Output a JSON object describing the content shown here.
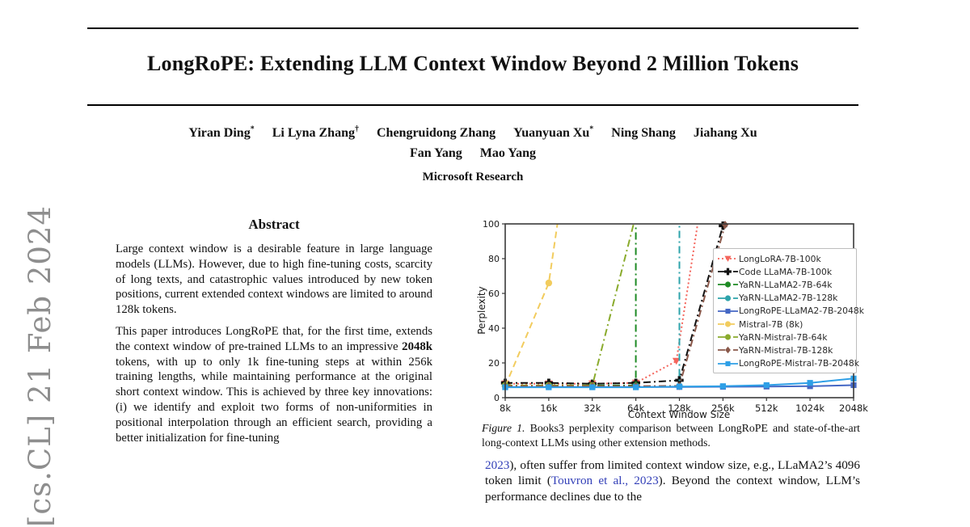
{
  "arxiv_stamp": "[cs.CL] 21 Feb 2024",
  "link_color": "#3340b8",
  "header": {
    "title": "LongRoPE: Extending LLM Context Window Beyond 2 Million Tokens",
    "authors_line1": [
      {
        "name": "Yiran Ding",
        "sup": "*"
      },
      {
        "name": "Li Lyna Zhang",
        "sup": "†"
      },
      {
        "name": "Chengruidong Zhang",
        "sup": ""
      },
      {
        "name": "Yuanyuan Xu",
        "sup": "*"
      },
      {
        "name": "Ning Shang",
        "sup": ""
      },
      {
        "name": "Jiahang Xu",
        "sup": ""
      }
    ],
    "authors_line2": [
      {
        "name": "Fan Yang",
        "sup": ""
      },
      {
        "name": "Mao Yang",
        "sup": ""
      }
    ],
    "affiliation": "Microsoft Research"
  },
  "abstract": {
    "heading": "Abstract",
    "p1": "Large context window is a desirable feature in large language models (LLMs). However, due to high fine-tuning costs, scarcity of long texts, and catastrophic values introduced by new token positions, current extended context windows are limited to around 128k tokens.",
    "p2a": "This paper introduces LongRoPE that, for the first time, extends the context window of pre-trained LLMs to an impressive ",
    "p2b": "2048k",
    "p2c": " tokens, with up to only 1k fine-tuning steps at within 256k training lengths, while maintaining performance at the original short context window. This is achieved by three key innovations: (i) we identify and exploit two forms of non-uniformities in positional interpolation through an efficient search, providing a better initialization for fine-tuning"
  },
  "figure_caption": {
    "label": "Figure 1.",
    "text": " Books3 perplexity comparison between LongRoPE and state-of-the-art long-context LLMs using other extension methods."
  },
  "right_column_text": {
    "cite1": "2023",
    "t1": "), often suffer from limited context window size, e.g., LLaMA2’s 4096 token limit (",
    "cite2": "Touvron et al., 2023",
    "t2": "). Beyond the context window, LLM’s performance declines due to the"
  },
  "chart_data": {
    "type": "line",
    "title": "",
    "xlabel": "Context Window Size",
    "ylabel": "Perplexity",
    "categories": [
      "8k",
      "16k",
      "32k",
      "64k",
      "128k",
      "256k",
      "512k",
      "1024k",
      "2048k"
    ],
    "ylim": [
      0,
      100
    ],
    "yticks": [
      0,
      20,
      40,
      60,
      80,
      100
    ],
    "grid": false,
    "legend_position": "inside-right",
    "series": [
      {
        "name": "LongLoRA-7B-100k",
        "color": "#f4655c",
        "dash": "dotted",
        "marker": "triangle-down",
        "line": [
          [
            0,
            8
          ],
          [
            1,
            8
          ],
          [
            2,
            8
          ],
          [
            3,
            8.5
          ],
          [
            3.93,
            21
          ],
          [
            4.42,
            100
          ]
        ],
        "markers": [
          [
            0,
            8
          ],
          [
            1,
            8
          ],
          [
            2,
            8
          ],
          [
            3,
            8.5
          ],
          [
            3.93,
            21
          ]
        ]
      },
      {
        "name": "Code LLaMA-7B-100k",
        "color": "#111111",
        "dash": "dashdot",
        "marker": "plus",
        "line": [
          [
            0,
            8.5
          ],
          [
            1,
            8.5
          ],
          [
            2,
            8
          ],
          [
            3,
            8.5
          ],
          [
            4,
            10
          ],
          [
            5,
            99
          ]
        ],
        "markers": [
          [
            0,
            8.5
          ],
          [
            1,
            8.5
          ],
          [
            2,
            8
          ],
          [
            3,
            8.5
          ],
          [
            4,
            10
          ],
          [
            5,
            99
          ]
        ]
      },
      {
        "name": "YaRN-LLaMA2-7B-64k",
        "color": "#1e8a24",
        "dash": "dashdot",
        "marker": "circle",
        "line": [
          [
            0,
            7
          ],
          [
            1,
            7
          ],
          [
            2,
            7
          ],
          [
            3,
            7
          ],
          [
            3,
            100
          ]
        ],
        "markers": [
          [
            0,
            7
          ],
          [
            1,
            7
          ],
          [
            2,
            7
          ],
          [
            3,
            7
          ]
        ]
      },
      {
        "name": "YaRN-LLaMA2-7B-128k",
        "color": "#2da3ab",
        "dash": "dashdot",
        "marker": "circle",
        "line": [
          [
            0,
            6.5
          ],
          [
            1,
            6.5
          ],
          [
            2,
            6.5
          ],
          [
            3,
            6.5
          ],
          [
            4,
            6.5
          ],
          [
            4,
            100
          ]
        ],
        "markers": [
          [
            0,
            6.5
          ],
          [
            1,
            6.5
          ],
          [
            2,
            6.5
          ],
          [
            3,
            6.5
          ],
          [
            4,
            6.5
          ]
        ]
      },
      {
        "name": "LongRoPE-LLaMA2-7B-2048k",
        "color": "#4467c4",
        "dash": "solid",
        "marker": "square",
        "line": [
          [
            0,
            6.2
          ],
          [
            1,
            6.2
          ],
          [
            2,
            6.2
          ],
          [
            3,
            6.2
          ],
          [
            4,
            6.2
          ],
          [
            5,
            6.3
          ],
          [
            6,
            6.4
          ],
          [
            7,
            6.6
          ],
          [
            8,
            7.2
          ]
        ],
        "markers": [
          [
            0,
            6.2
          ],
          [
            1,
            6.2
          ],
          [
            2,
            6.2
          ],
          [
            3,
            6.2
          ],
          [
            4,
            6.2
          ],
          [
            5,
            6.3
          ],
          [
            6,
            6.4
          ],
          [
            7,
            6.6
          ],
          [
            8,
            7.2
          ]
        ]
      },
      {
        "name": "Mistral-7B (8k)",
        "color": "#f2cc5e",
        "dash": "dashed",
        "marker": "circle",
        "line": [
          [
            0,
            6.5
          ],
          [
            1,
            66
          ],
          [
            1.2,
            100
          ]
        ],
        "markers": [
          [
            0,
            6.5
          ],
          [
            1,
            66
          ]
        ]
      },
      {
        "name": "YaRN-Mistral-7B-64k",
        "color": "#8aab2d",
        "dash": "dashdot",
        "marker": "circle",
        "line": [
          [
            0,
            7
          ],
          [
            1,
            7
          ],
          [
            2,
            7
          ],
          [
            2.95,
            100
          ]
        ],
        "markers": [
          [
            0,
            7
          ],
          [
            1,
            7
          ],
          [
            2,
            7
          ]
        ]
      },
      {
        "name": "YaRN-Mistral-7B-128k",
        "color": "#8a584a",
        "dash": "dashdot",
        "marker": "diamond",
        "line": [
          [
            0,
            6.6
          ],
          [
            1,
            6.6
          ],
          [
            2,
            6.6
          ],
          [
            3,
            6.6
          ],
          [
            4,
            6.8
          ],
          [
            5.05,
            99.5
          ]
        ],
        "markers": [
          [
            0,
            6.6
          ],
          [
            1,
            6.6
          ],
          [
            2,
            6.6
          ],
          [
            3,
            6.6
          ],
          [
            4,
            6.8
          ],
          [
            5.05,
            99.5
          ]
        ]
      },
      {
        "name": "LongRoPE-Mistral-7B-2048k",
        "color": "#2e9fe6",
        "dash": "solid",
        "marker": "square",
        "line": [
          [
            0,
            6
          ],
          [
            1,
            6
          ],
          [
            2,
            6
          ],
          [
            3,
            6
          ],
          [
            4,
            6.4
          ],
          [
            5,
            6.6
          ],
          [
            6,
            7.2
          ],
          [
            7,
            8.5
          ],
          [
            8,
            11
          ]
        ],
        "markers": [
          [
            0,
            6
          ],
          [
            1,
            6
          ],
          [
            2,
            6
          ],
          [
            3,
            6
          ],
          [
            4,
            6.4
          ],
          [
            5,
            6.6
          ],
          [
            6,
            7.2
          ],
          [
            7,
            8.5
          ],
          [
            8,
            11
          ]
        ]
      }
    ]
  }
}
